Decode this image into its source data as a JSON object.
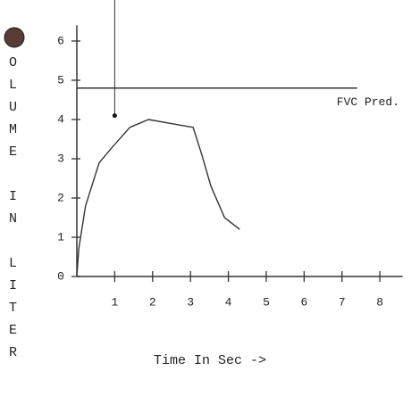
{
  "chart_data": {
    "type": "line",
    "x_label": "Time In Sec ->",
    "y_label": "OLUME IN LITER",
    "x": [
      0,
      0.05,
      0.23,
      0.59,
      0.94,
      1.4,
      1.89,
      2.48,
      3.07,
      3.3,
      3.54,
      3.9,
      4.3
    ],
    "series": [
      {
        "color": "#333333",
        "values": [
          0,
          0.7,
          1.8,
          2.9,
          3.3,
          3.8,
          4.0,
          3.9,
          3.8,
          3.1,
          2.3,
          1.5,
          1.2
        ]
      }
    ],
    "xlim": [
      0,
      8.6
    ],
    "ylim": [
      0,
      6.4
    ],
    "xticks": [
      1,
      2,
      3,
      4,
      5,
      6,
      7,
      8
    ],
    "yticks": [
      0,
      1,
      2,
      3,
      4,
      5,
      6
    ],
    "reference_line": {
      "label": "FVC Pred.",
      "y": 4.8,
      "x_end": 7.4
    },
    "cursor": {
      "x": 1,
      "y": 4.1
    }
  }
}
